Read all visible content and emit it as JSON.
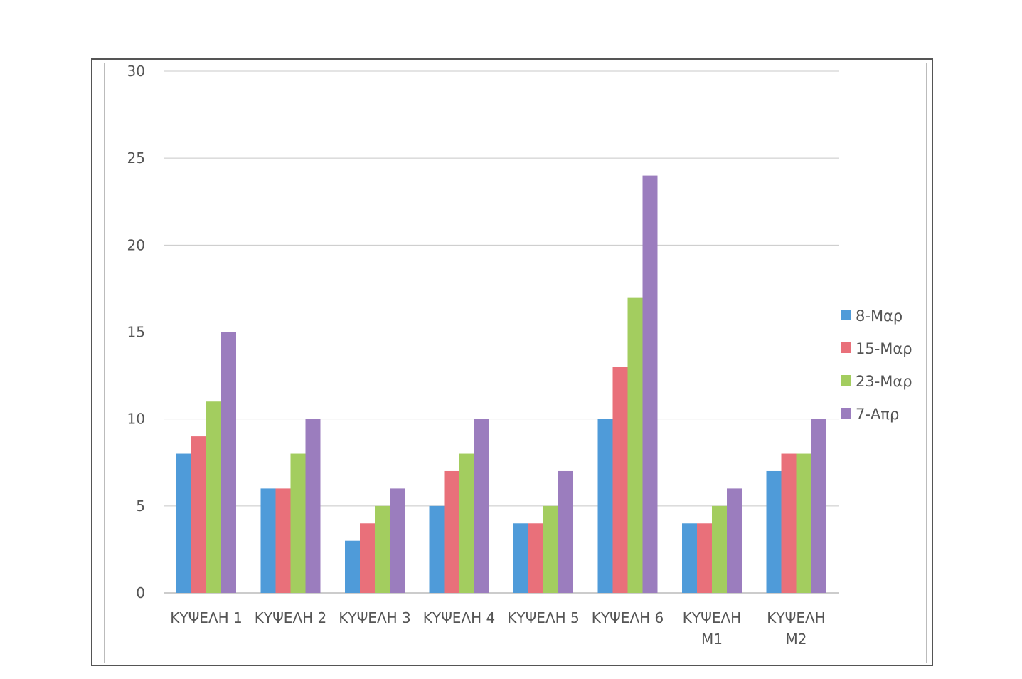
{
  "chart_data": {
    "type": "bar",
    "title": "",
    "xlabel": "",
    "ylabel": "",
    "ylim": [
      0,
      30
    ],
    "yticks": [
      0,
      5,
      10,
      15,
      20,
      25,
      30
    ],
    "grid": true,
    "legend_position": "right",
    "categories": [
      [
        "ΚΥΨΕΛΗ 1"
      ],
      [
        "ΚΥΨΕΛΗ 2"
      ],
      [
        "ΚΥΨΕΛΗ 3"
      ],
      [
        "ΚΥΨΕΛΗ 4"
      ],
      [
        "ΚΥΨΕΛΗ 5"
      ],
      [
        "ΚΥΨΕΛΗ 6"
      ],
      [
        "ΚΥΨΕΛΗ",
        "Μ1"
      ],
      [
        "ΚΥΨΕΛΗ",
        "Μ2"
      ]
    ],
    "series": [
      {
        "name": "8-Μαρ",
        "color": "#4f9bd9",
        "values": [
          8,
          6,
          3,
          5,
          4,
          10,
          4,
          7
        ]
      },
      {
        "name": "15-Μαρ",
        "color": "#e9707a",
        "values": [
          9,
          6,
          4,
          7,
          4,
          13,
          4,
          8
        ]
      },
      {
        "name": "23-Μαρ",
        "color": "#a3cd5f",
        "values": [
          11,
          8,
          5,
          8,
          5,
          17,
          5,
          8
        ]
      },
      {
        "name": "7-Απρ",
        "color": "#9b7dbe",
        "values": [
          15,
          10,
          6,
          10,
          7,
          24,
          6,
          10
        ]
      }
    ]
  }
}
